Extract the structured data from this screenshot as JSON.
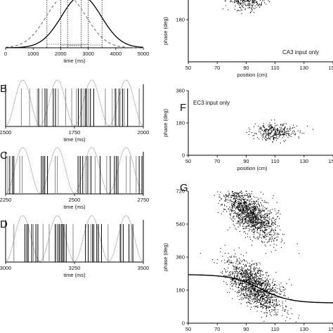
{
  "chart_data": [
    {
      "id": "A",
      "type": "line",
      "letter": "",
      "xlabel": "time (ms)",
      "xlim": [
        0,
        5000
      ],
      "xticks": [
        "0",
        "1000",
        "2000",
        "3000",
        "4000",
        "5000"
      ],
      "ylim": [
        0,
        1
      ],
      "series": [
        {
          "style": "dashed",
          "color": "#888888",
          "mean": 2200,
          "sd": 720
        },
        {
          "style": "solid",
          "color": "#000000",
          "mean": 2750,
          "sd": 720
        }
      ],
      "dotted_lines_x": [
        1500,
        2000,
        2250,
        2750,
        3000,
        3500
      ]
    },
    {
      "id": "B",
      "type": "raster",
      "letter": "B",
      "xlabel": "time (ms)",
      "xlim": [
        1500,
        2000
      ],
      "xticks": [
        "1500",
        "1750",
        "2000"
      ],
      "xtick_values": [
        1500,
        1750,
        2000
      ],
      "theta_start": 1500,
      "theta_period": 125,
      "spikes_black": [
        1620,
        1643,
        1650,
        1673,
        1681,
        1764,
        1774,
        1789,
        1794,
        1808,
        1820,
        1900,
        1912,
        1925,
        1943
      ],
      "spikes_gray": [
        1557,
        1587,
        1615,
        1633,
        1691,
        1718,
        1740,
        1757,
        1781,
        1801,
        1862,
        1887,
        1896,
        1918,
        1931,
        1985
      ]
    },
    {
      "id": "C",
      "type": "raster",
      "letter": "C",
      "xlabel": "time (ms)",
      "xlim": [
        2250,
        2750
      ],
      "xticks": [
        "2250",
        "2500",
        "2750"
      ],
      "xtick_values": [
        2250,
        2500,
        2750
      ],
      "theta_start": 2250,
      "theta_period": 125,
      "spikes_black": [
        2265,
        2275,
        2280,
        2380,
        2386,
        2392,
        2402,
        2513,
        2521,
        2530,
        2546,
        2560,
        2593,
        2630,
        2645,
        2652,
        2658,
        2735,
        2745
      ],
      "spikes_gray": [
        2258,
        2301,
        2310,
        2392,
        2430,
        2438,
        2520,
        2539,
        2552,
        2575,
        2617,
        2688,
        2702,
        2724
      ]
    },
    {
      "id": "D",
      "type": "raster",
      "letter": "D",
      "xlabel": "time (ms)",
      "xlim": [
        3000,
        3500
      ],
      "xticks": [
        "3000",
        "3250",
        "3500"
      ],
      "xtick_values": [
        3000,
        3250,
        3500
      ],
      "theta_start": 3000,
      "theta_period": 125,
      "spikes_black": [
        3070,
        3077,
        3082,
        3095,
        3110,
        3117,
        3180,
        3190,
        3196,
        3203,
        3208,
        3212,
        3220,
        3290,
        3300,
        3315,
        3320,
        3331,
        3337,
        3348,
        3418,
        3427,
        3448,
        3462
      ],
      "spikes_gray": [
        3030,
        3101,
        3136,
        3158,
        3184,
        3198,
        3245,
        3309,
        3372,
        3415,
        3457
      ]
    },
    {
      "id": "E",
      "type": "scatter",
      "letter": "",
      "note": "CA3 input only",
      "xlabel": "position (cm)",
      "ylabel": "phase (deg)",
      "xlim": [
        50,
        150
      ],
      "ylim": [
        0,
        360
      ],
      "xticks": [
        "50",
        "70",
        "90",
        "110",
        "130",
        "150"
      ],
      "xtick_values": [
        50,
        70,
        90,
        110,
        130,
        150
      ],
      "yticks": [
        "180"
      ],
      "ytick_values": [
        180
      ],
      "clusters": [
        {
          "cx": 90,
          "cy": 270,
          "sx": 6.5,
          "sy": 24,
          "n": 420
        }
      ]
    },
    {
      "id": "F",
      "type": "scatter",
      "letter": "F",
      "note": "EC3 input only",
      "xlabel": "position (cm)",
      "ylabel": "phase (deg)",
      "xlim": [
        50,
        150
      ],
      "ylim": [
        0,
        360
      ],
      "xticks": [
        "50",
        "70",
        "90",
        "110",
        "130",
        "150"
      ],
      "xtick_values": [
        50,
        70,
        90,
        110,
        130,
        150
      ],
      "yticks": [
        "0",
        "180",
        "360"
      ],
      "ytick_values": [
        0,
        180,
        360
      ],
      "clusters": [
        {
          "cx": 110,
          "cy": 130,
          "sx": 7,
          "sy": 24,
          "n": 330
        }
      ]
    },
    {
      "id": "G",
      "type": "scatter",
      "letter": "G",
      "xlabel": "position (cm)",
      "ylabel": "phase (deg)",
      "xlim": [
        50,
        150
      ],
      "ylim": [
        0,
        720
      ],
      "xticks": [
        "50",
        "70",
        "90",
        "110",
        "130",
        "150"
      ],
      "xtick_values": [
        50,
        70,
        90,
        110,
        130,
        150
      ],
      "yticks": [
        "0",
        "180",
        "360",
        "540",
        "720"
      ],
      "ytick_values": [
        0,
        180,
        360,
        540,
        720
      ],
      "clusters": [
        {
          "cx": 92,
          "cy": 600,
          "sx": 9,
          "sy": 55,
          "n": 1400,
          "tilt": -5
        },
        {
          "cx": 96,
          "cy": 200,
          "sx": 10,
          "sy": 55,
          "n": 1400,
          "tilt": -4.5
        }
      ],
      "fit_curve": {
        "top": 265,
        "bottom": 110,
        "mid": 100,
        "width": 10
      }
    }
  ]
}
